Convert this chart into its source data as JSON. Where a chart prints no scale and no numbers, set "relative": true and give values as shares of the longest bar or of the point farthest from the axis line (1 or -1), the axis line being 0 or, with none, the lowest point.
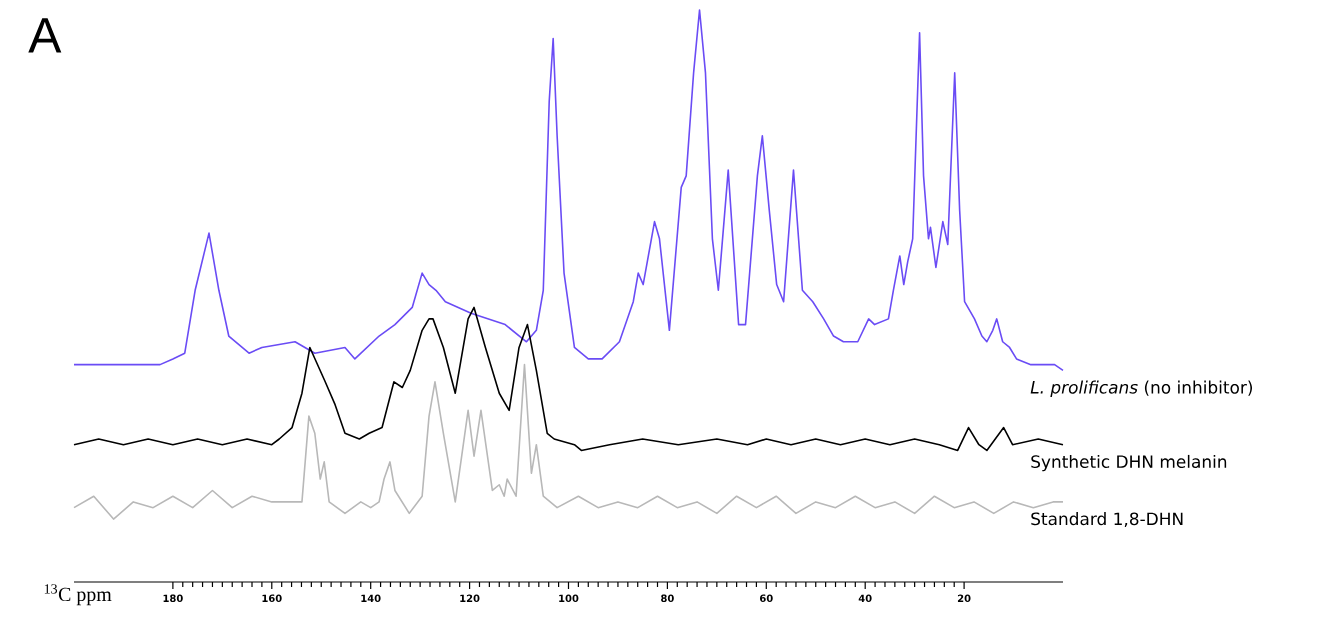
{
  "chart_data": {
    "type": "line",
    "relative": true,
    "xlabel": "$^{13}$C ppm",
    "xlim": [
      200,
      0
    ],
    "xticks": [
      180,
      160,
      140,
      120,
      100,
      80,
      60,
      40,
      20
    ],
    "annotations": [
      "A"
    ],
    "series": [
      {
        "name": "*L. prolificans* (no inhibitor)",
        "color": "#6a4cf5",
        "x": [
          200,
          195.7,
          190.7,
          185.7,
          182.6,
          180,
          177.6,
          175.5,
          172.7,
          170.7,
          168.7,
          164.6,
          162,
          155.3,
          151.3,
          145.2,
          143.2,
          138.3,
          135.1,
          131.6,
          129.6,
          128.2,
          126.8,
          124.9,
          119.7,
          112.8,
          108.5,
          106.5,
          105.1,
          103.9,
          103.1,
          102.3,
          100.9,
          98.8,
          96.0,
          93.2,
          89.7,
          86.9,
          85.9,
          84.9,
          82.6,
          81.6,
          79.6,
          77.2,
          76.2,
          74.7,
          73.5,
          72.3,
          70.9,
          69.7,
          67.7,
          65.6,
          64.2,
          61.8,
          60.8,
          59.4,
          57.9,
          56.5,
          54.5,
          52.7,
          50.6,
          48.4,
          46.4,
          44.4,
          41.5,
          39.3,
          38.1,
          35.3,
          34.3,
          33.0,
          32.2,
          31.4,
          30.4,
          29.0,
          28.2,
          27.2,
          26.8,
          25.7,
          24.3,
          23.3,
          21.9,
          20.9,
          19.9,
          17.9,
          16.4,
          15.4,
          14.2,
          13.4,
          12.2,
          10.8,
          9.4,
          6.5,
          3.9,
          1.7,
          0
        ],
        "values": [
          0.38,
          0.38,
          0.38,
          0.38,
          0.38,
          0.39,
          0.4,
          0.51,
          0.61,
          0.51,
          0.43,
          0.4,
          0.41,
          0.42,
          0.4,
          0.41,
          0.39,
          0.43,
          0.45,
          0.48,
          0.54,
          0.52,
          0.51,
          0.49,
          0.47,
          0.45,
          0.42,
          0.44,
          0.51,
          0.84,
          0.95,
          0.78,
          0.54,
          0.41,
          0.39,
          0.39,
          0.42,
          0.49,
          0.54,
          0.52,
          0.63,
          0.6,
          0.44,
          0.69,
          0.71,
          0.89,
          1.0,
          0.89,
          0.6,
          0.51,
          0.72,
          0.45,
          0.45,
          0.71,
          0.78,
          0.65,
          0.52,
          0.49,
          0.72,
          0.51,
          0.49,
          0.46,
          0.43,
          0.42,
          0.42,
          0.46,
          0.45,
          0.46,
          0.51,
          0.57,
          0.52,
          0.56,
          0.6,
          0.96,
          0.71,
          0.6,
          0.62,
          0.55,
          0.63,
          0.59,
          0.89,
          0.65,
          0.49,
          0.46,
          0.43,
          0.42,
          0.44,
          0.46,
          0.42,
          0.41,
          0.39,
          0.38,
          0.38,
          0.38,
          0.37
        ]
      },
      {
        "name": "Synthetic DHN melanin",
        "color": "#000000",
        "x": [
          200,
          195,
          190,
          185,
          180,
          175,
          170,
          165,
          160,
          158.5,
          155.9,
          153.9,
          152.3,
          149.2,
          147.2,
          145.2,
          142.3,
          140.3,
          137.7,
          135.3,
          133.6,
          132.0,
          129.6,
          128.2,
          127.4,
          125.3,
          122.9,
          120.3,
          119.1,
          116.8,
          114.0,
          112.0,
          110.0,
          108.3,
          106.5,
          104.3,
          102.9,
          98.8,
          97.4,
          91.7,
          85,
          77.8,
          70,
          63.8,
          60.0,
          55,
          50,
          45,
          40,
          35,
          30,
          25,
          21.3,
          19.1,
          17.0,
          15.4,
          12.0,
          10.2,
          5,
          0
        ],
        "values": [
          0.24,
          0.25,
          0.24,
          0.25,
          0.24,
          0.25,
          0.24,
          0.25,
          0.24,
          0.25,
          0.27,
          0.33,
          0.41,
          0.35,
          0.31,
          0.26,
          0.25,
          0.26,
          0.27,
          0.35,
          0.34,
          0.37,
          0.44,
          0.46,
          0.46,
          0.41,
          0.33,
          0.46,
          0.48,
          0.41,
          0.33,
          0.3,
          0.41,
          0.45,
          0.37,
          0.26,
          0.25,
          0.24,
          0.23,
          0.24,
          0.25,
          0.24,
          0.25,
          0.24,
          0.25,
          0.24,
          0.25,
          0.24,
          0.25,
          0.24,
          0.25,
          0.24,
          0.23,
          0.27,
          0.24,
          0.23,
          0.27,
          0.24,
          0.25,
          0.24
        ]
      },
      {
        "name": "Standard 1,8-DHN",
        "color": "#b8b8b8",
        "x": [
          200,
          196,
          192,
          188,
          184,
          180,
          176,
          172,
          168,
          164,
          160,
          156,
          153.9,
          152.5,
          151.3,
          150.2,
          149.4,
          148.4,
          145.2,
          142,
          140,
          138.3,
          137.3,
          136.1,
          135.1,
          132.2,
          129.6,
          128.2,
          127.0,
          125.3,
          122.9,
          120.3,
          119.1,
          117.7,
          115.4,
          114.0,
          113.0,
          112.4,
          110.6,
          108.9,
          107.5,
          106.5,
          105.1,
          102.3,
          98,
          94,
          90,
          86,
          82,
          78,
          74,
          70,
          66,
          62,
          58,
          54,
          50,
          46,
          42,
          38,
          34,
          30,
          26,
          22,
          18,
          14,
          10,
          6,
          2,
          0
        ],
        "values": [
          0.13,
          0.15,
          0.11,
          0.14,
          0.13,
          0.15,
          0.13,
          0.16,
          0.13,
          0.15,
          0.14,
          0.14,
          0.14,
          0.29,
          0.26,
          0.18,
          0.21,
          0.14,
          0.12,
          0.14,
          0.13,
          0.14,
          0.18,
          0.21,
          0.16,
          0.12,
          0.15,
          0.29,
          0.35,
          0.26,
          0.14,
          0.3,
          0.22,
          0.3,
          0.16,
          0.17,
          0.15,
          0.18,
          0.15,
          0.38,
          0.19,
          0.24,
          0.15,
          0.13,
          0.15,
          0.13,
          0.14,
          0.13,
          0.15,
          0.13,
          0.14,
          0.12,
          0.15,
          0.13,
          0.15,
          0.12,
          0.14,
          0.13,
          0.15,
          0.13,
          0.14,
          0.12,
          0.15,
          0.13,
          0.14,
          0.12,
          0.14,
          0.13,
          0.14,
          0.14
        ]
      }
    ]
  }
}
